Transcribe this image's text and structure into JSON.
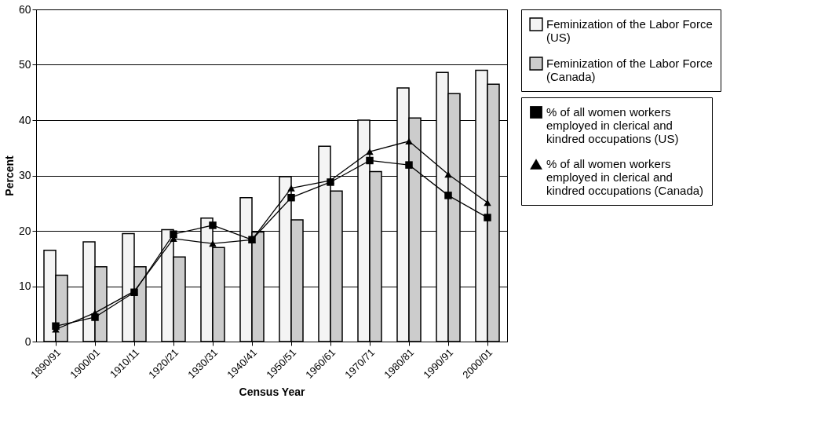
{
  "chart_data": {
    "type": "bar",
    "xlabel": "Census Year",
    "ylabel": "Percent",
    "categories": [
      "1890/91",
      "1900/01",
      "1910/11",
      "1920/21",
      "1930/31",
      "1940/41",
      "1950/51",
      "1960/61",
      "1970/71",
      "1980/81",
      "1990/91",
      "2000/01"
    ],
    "series": [
      {
        "name": "Feminization of the Labor Force (US)",
        "color": "#f4f4f4",
        "values": [
          16.5,
          18,
          19.5,
          20.2,
          22.3,
          26,
          29.8,
          35.3,
          40,
          45.8,
          48.6,
          49
        ]
      },
      {
        "name": "Feminization of the Labor Force (Canada)",
        "color": "#cccccc",
        "values": [
          12,
          13.5,
          13.5,
          15.3,
          17,
          19.8,
          22,
          27.2,
          30.7,
          40.4,
          44.8,
          46.5
        ]
      },
      {
        "name": "% of all women workers employed in clerical and kindred occupations (US)",
        "type": "line",
        "color": "#000000",
        "marker": "square",
        "values": [
          2.8,
          4.4,
          8.9,
          19.4,
          21,
          18.4,
          26,
          28.8,
          32.7,
          31.9,
          26.4,
          22.4
        ]
      },
      {
        "name": "% of all women workers employed in clerical and kindred occupations (Canada)",
        "type": "line",
        "color": "#000000",
        "marker": "triangle",
        "values": [
          2.2,
          5.2,
          9.1,
          18.6,
          17.7,
          18.4,
          27.7,
          29.1,
          34.3,
          36.2,
          30.2,
          25.1
        ]
      }
    ],
    "ylim": [
      0,
      60
    ],
    "yticks": [
      0,
      10,
      20,
      30,
      40,
      50,
      60
    ],
    "grid": "y",
    "legend": "right"
  }
}
